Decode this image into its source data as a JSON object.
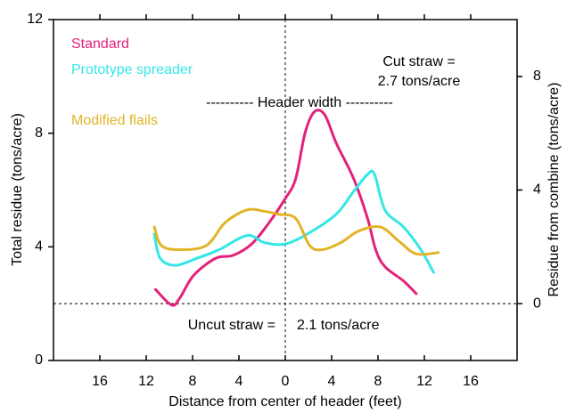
{
  "chart_data": {
    "type": "line",
    "xlabel": "Distance from center of header (feet)",
    "ylabel": "Total residue (tons/acre)",
    "y2label": "Residue from combine (tons/acre)",
    "xlim": [
      -20,
      20
    ],
    "xticks": [
      {
        "value": -16,
        "label": "16"
      },
      {
        "value": -12,
        "label": "12"
      },
      {
        "value": -8,
        "label": "8"
      },
      {
        "value": -4,
        "label": "4"
      },
      0,
      4,
      8,
      12,
      16
    ],
    "ylim": [
      0,
      12
    ],
    "yticks": [
      0,
      4,
      8,
      12
    ],
    "y2lim": [
      -2,
      10
    ],
    "y2ticks": [
      0,
      4,
      8
    ],
    "annotations": [
      "Cut straw =",
      "2.7 tons/acre",
      "---------- Header width ----------",
      "Uncut straw =",
      "2.1 tons/acre"
    ],
    "series": [
      {
        "name": "Standard",
        "color": "#e3217c",
        "x": [
          -11.2,
          -9.8,
          -9.1,
          -7.9,
          -6.0,
          -4.5,
          -2.9,
          -1.4,
          0,
          0.9,
          1.7,
          2.5,
          3.4,
          4.4,
          5.9,
          7.1,
          7.8,
          8.6,
          10.2,
          11.3
        ],
        "values": [
          2.5,
          1.95,
          2.2,
          3.0,
          3.6,
          3.7,
          4.1,
          4.85,
          5.7,
          6.4,
          8.0,
          8.75,
          8.65,
          7.65,
          6.4,
          5.0,
          3.9,
          3.3,
          2.8,
          2.35
        ]
      },
      {
        "name": "Prototype spreader",
        "color": "#35e6e6",
        "x": [
          -11.3,
          -10.8,
          -9.5,
          -7.6,
          -5.7,
          -3.3,
          -1.8,
          0,
          2.1,
          4.4,
          5.9,
          7.1,
          7.7,
          8.6,
          10.2,
          11.7,
          12.8
        ],
        "values": [
          4.45,
          3.6,
          3.35,
          3.6,
          3.9,
          4.4,
          4.15,
          4.1,
          4.5,
          5.15,
          5.95,
          6.55,
          6.55,
          5.3,
          4.7,
          3.9,
          3.1
        ]
      },
      {
        "name": "Modified flails",
        "color": "#e2b425",
        "x": [
          -11.3,
          -10.7,
          -9.1,
          -6.8,
          -5.2,
          -3.3,
          -1.8,
          -0.6,
          0.9,
          2.1,
          3.2,
          4.8,
          6.3,
          8.2,
          9.8,
          11.3,
          13.2
        ],
        "values": [
          4.7,
          4.05,
          3.9,
          4.05,
          4.85,
          5.3,
          5.25,
          5.15,
          5.0,
          4.05,
          3.9,
          4.15,
          4.55,
          4.7,
          4.2,
          3.75,
          3.8
        ]
      }
    ]
  }
}
